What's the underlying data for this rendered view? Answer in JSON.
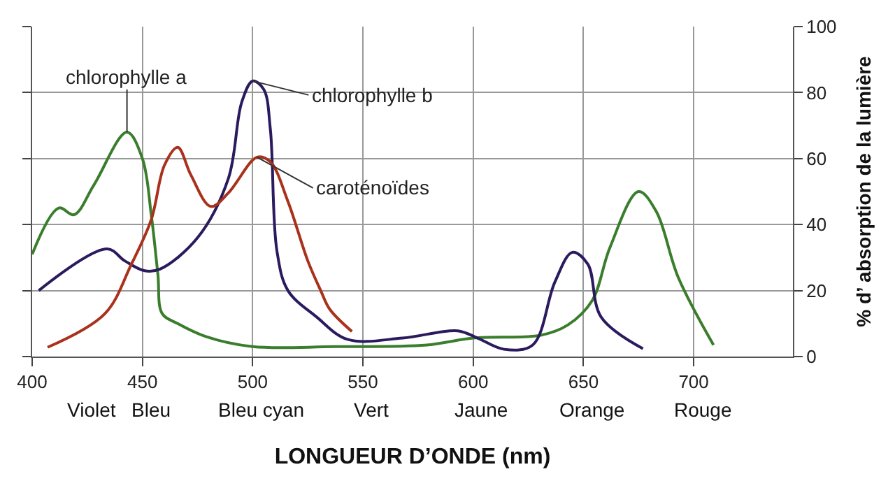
{
  "chart_data": {
    "type": "line",
    "xlabel": "LONGUEUR D’ONDE (nm)",
    "ylabel": "% d’ absorption de la lumière",
    "xlim": [
      400,
      745
    ],
    "xticks": [
      400,
      450,
      500,
      550,
      600,
      650,
      700
    ],
    "ylim": [
      0,
      100
    ],
    "yticks": [
      0,
      20,
      40,
      60,
      80,
      100
    ],
    "grid": true,
    "legend": false,
    "marker": "none",
    "line_style": "solid",
    "series": [
      {
        "name": "chlorophylle a",
        "color": "#3a7d2c",
        "x": [
          400,
          412,
          419,
          428,
          443,
          450,
          454,
          457,
          459,
          466,
          479,
          500,
          537,
          579,
          600,
          631,
          643,
          654,
          662,
          675,
          683,
          693,
          709
        ],
        "values": [
          31,
          45,
          43,
          52,
          68,
          60,
          43,
          25,
          13,
          10,
          6,
          3,
          3,
          3.5,
          5.6,
          6.5,
          9.6,
          17,
          33,
          50,
          44,
          24,
          3.5
        ]
      },
      {
        "name": "chlorophylle b",
        "color": "#2b1a5e",
        "x": [
          403,
          434,
          442,
          451,
          458,
          475,
          489,
          495,
          500,
          505,
          508,
          511,
          516,
          529,
          543,
          568,
          593,
          602,
          614,
          627,
          637,
          645,
          652,
          658,
          677
        ],
        "values": [
          20,
          32.6,
          29,
          26,
          26.5,
          36,
          54,
          77,
          83.5,
          81,
          69,
          32,
          20,
          12,
          5.2,
          5.6,
          7.8,
          5.6,
          2.2,
          3.5,
          22.5,
          31.6,
          28,
          12,
          2.4
        ]
      },
      {
        "name": "caroténoïdes",
        "color": "#a8321c",
        "x": [
          407,
          433,
          445,
          454,
          460,
          466,
          472,
          481,
          489,
          502,
          508,
          516,
          525,
          531,
          535,
          545
        ],
        "values": [
          2.8,
          13,
          28,
          41.5,
          58,
          63.4,
          55,
          45.5,
          49.6,
          60.4,
          59,
          47,
          29,
          19.8,
          14.3,
          7.6
        ]
      }
    ],
    "annotations": [
      "Violet",
      "Bleu",
      "Bleu cyan",
      "Vert",
      "Jaune",
      "Orange",
      "Rouge"
    ]
  }
}
